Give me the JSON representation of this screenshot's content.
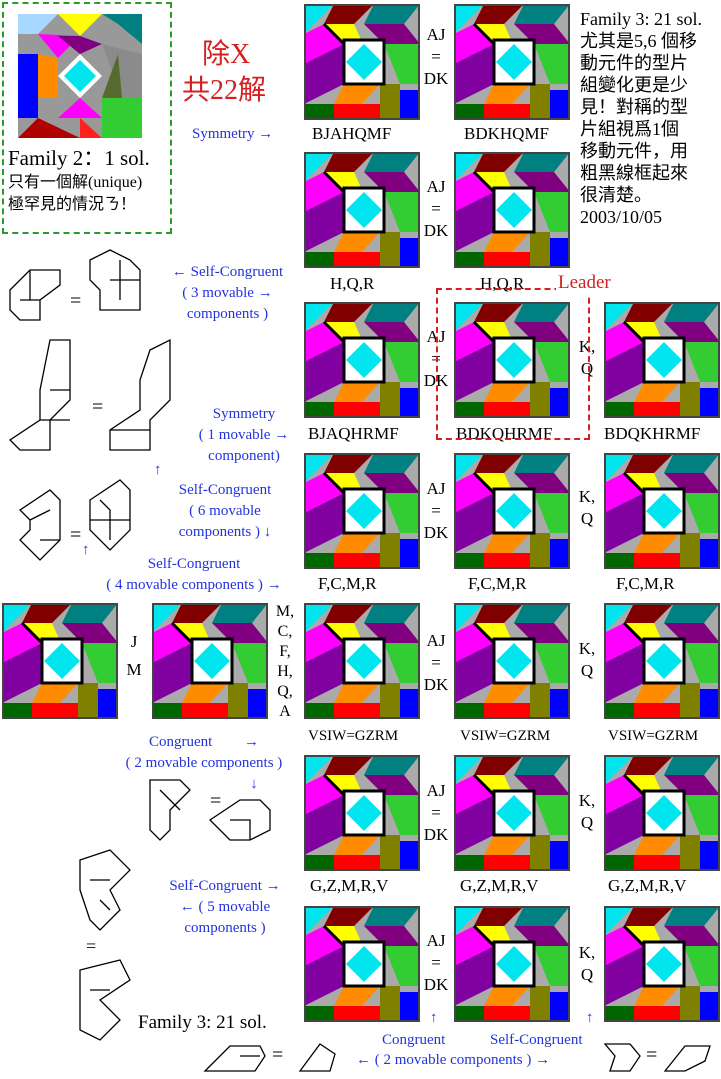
{
  "family2": {
    "title": "Family 2：1 sol.",
    "note1": "只有一個解(unique)",
    "note2": "極罕見的情況ㄋ！"
  },
  "excl": {
    "line1": "除X",
    "line2": "共22解"
  },
  "family3_note": [
    "Family 3: 21 sol.",
    "尤其是5,6 個移",
    "動元件的型片",
    "組變化更是少",
    "見！對稱的型",
    "片組視爲1個",
    "移動元件，用",
    "粗黑線框起來",
    "很清楚。",
    "2003/10/05"
  ],
  "aj_dk": [
    "AJ",
    "=",
    "DK"
  ],
  "kq": [
    "K,",
    "Q"
  ],
  "jm": [
    "J",
    "M"
  ],
  "mcf": [
    "M,",
    "C,",
    "F,",
    "H,",
    "Q,",
    "A"
  ],
  "captions": {
    "r0a": "BJAHQMF",
    "r0b": "BDKHQMF",
    "r1a": "H,Q,R",
    "r1b": "H,Q,R",
    "r2a": "BJAQHRMF",
    "r2b": "BDKQHRMF",
    "r2c": "BDQKHRMF",
    "r3": "F,C,M,R",
    "r4": "VSIW=GZRM",
    "r5": "G,Z,M,R,V"
  },
  "leader": "Leader",
  "annotations": {
    "symmetry": "Symmetry",
    "sc3": [
      "Self-Congruent",
      "( 3 movable",
      "components )"
    ],
    "sym1": [
      "Symmetry",
      "( 1 movable",
      "component)"
    ],
    "sc6": [
      "Self-Congruent",
      "( 6 movable",
      "components )"
    ],
    "sc4": [
      "Self-Congruent",
      "( 4 movable components )"
    ],
    "cong2": [
      "Congruent",
      "( 2 movable components )"
    ],
    "sc5": [
      "Self-Congruent",
      "( 5 movable",
      "components )"
    ],
    "bottom_cong": "Congruent",
    "bottom_sc": "Self-Congruent",
    "bottom_mov": "( 2 movable components )"
  },
  "family3_bottom": "Family 3: 21 sol.",
  "eq": "=",
  "eq2": "="
}
